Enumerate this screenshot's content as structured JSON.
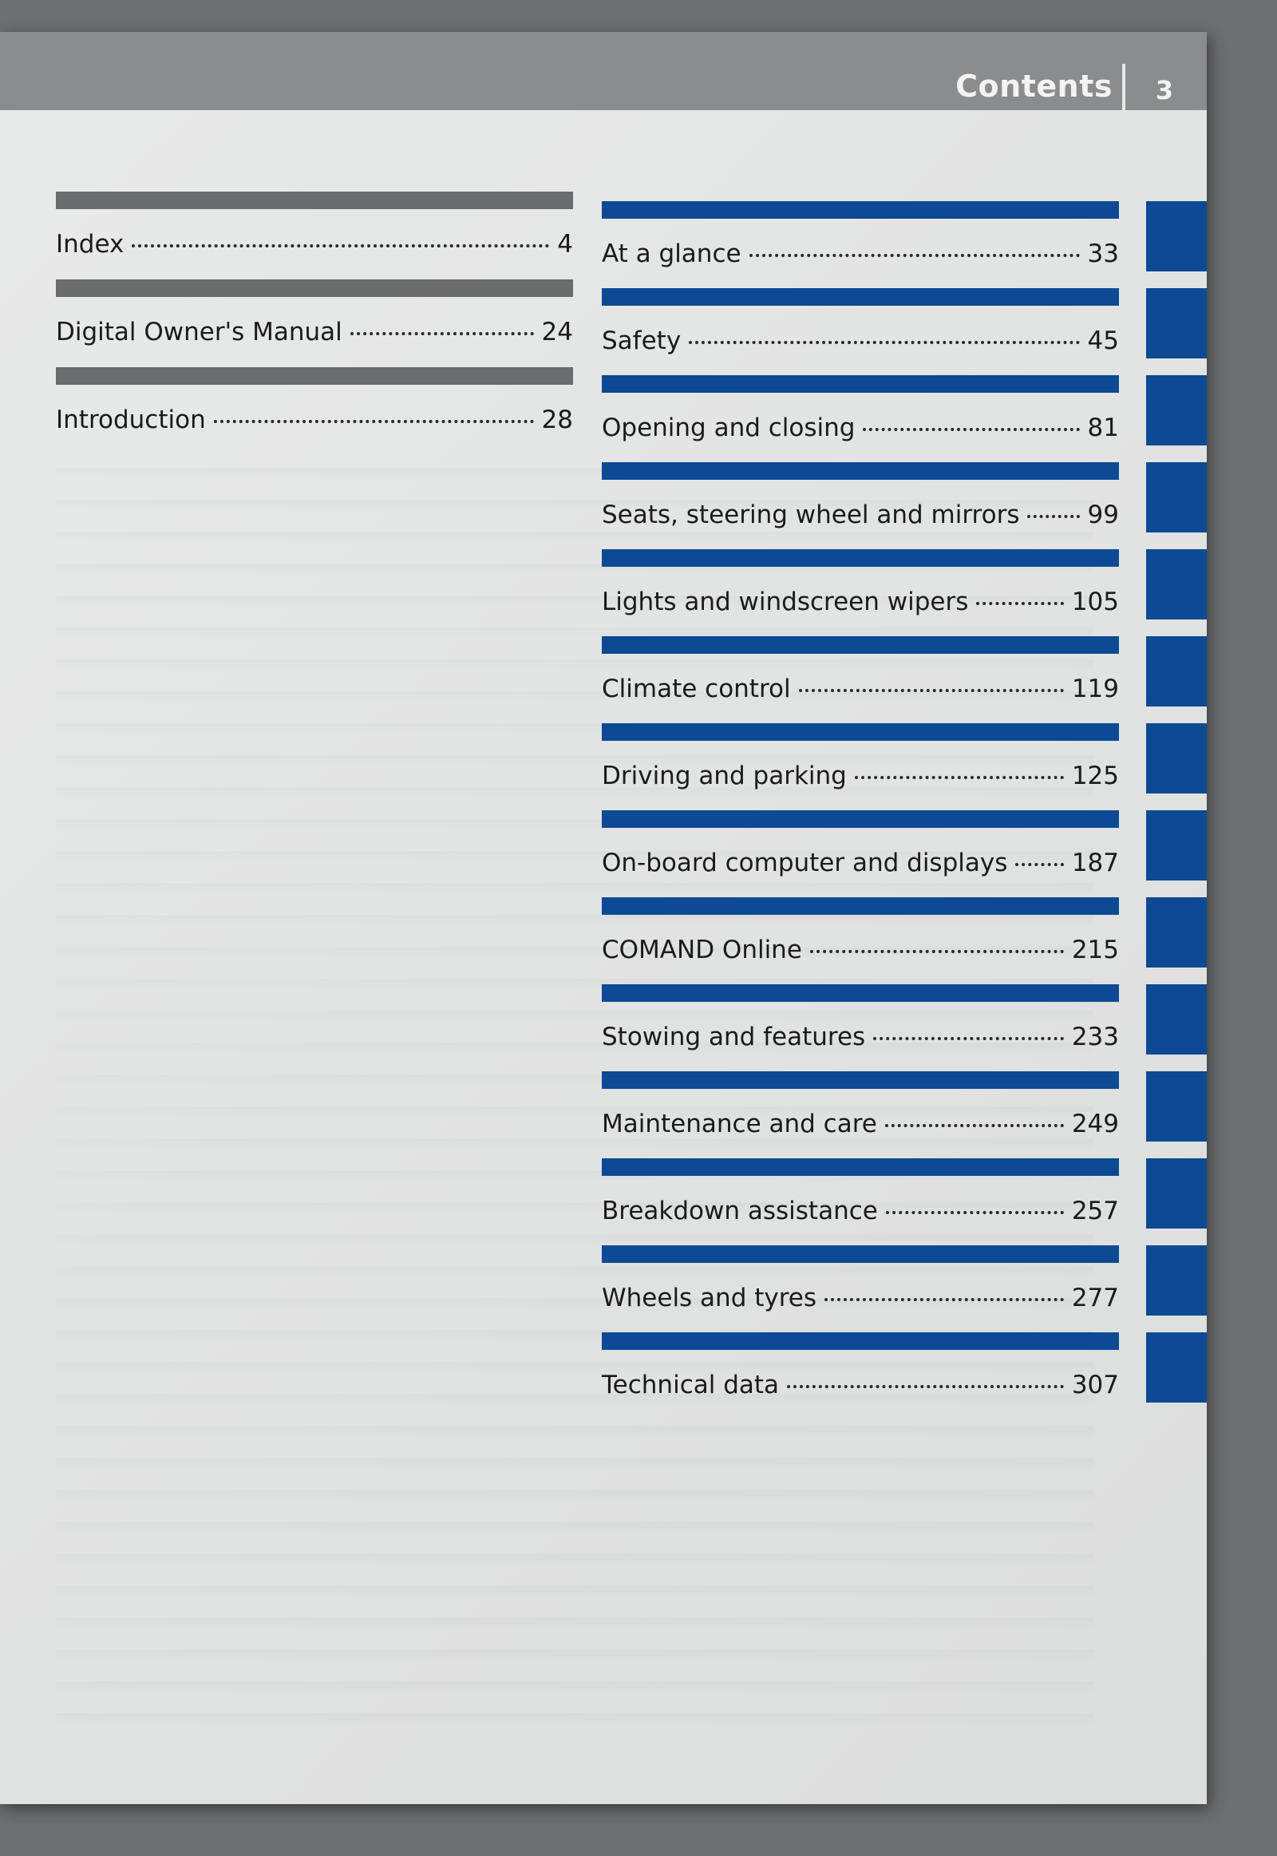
{
  "header": {
    "title": "Contents",
    "page_number": "3"
  },
  "left_entries": [
    {
      "label": "Index",
      "page": "4"
    },
    {
      "label": "Digital Owner's Manual",
      "page": "24"
    },
    {
      "label": "Introduction",
      "page": "28"
    }
  ],
  "right_entries": [
    {
      "label": "At a glance",
      "page": "33"
    },
    {
      "label": "Safety",
      "page": "45"
    },
    {
      "label": "Opening and closing",
      "page": "81"
    },
    {
      "label": "Seats, steering wheel and mirrors",
      "page": "99"
    },
    {
      "label": "Lights and windscreen wipers",
      "page": "105"
    },
    {
      "label": "Climate control",
      "page": "119"
    },
    {
      "label": "Driving and parking",
      "page": "125"
    },
    {
      "label": "On-board computer and displays",
      "page": "187"
    },
    {
      "label": "COMAND Online",
      "page": "215"
    },
    {
      "label": "Stowing and features",
      "page": "233"
    },
    {
      "label": "Maintenance and care",
      "page": "249"
    },
    {
      "label": "Breakdown assistance",
      "page": "257"
    },
    {
      "label": "Wheels and tyres",
      "page": "277"
    },
    {
      "label": "Technical data",
      "page": "307"
    }
  ],
  "colors": {
    "section_blue": "#0d4a93",
    "section_gray": "#6b6c6e",
    "header_gray": "#8b8c8e"
  }
}
